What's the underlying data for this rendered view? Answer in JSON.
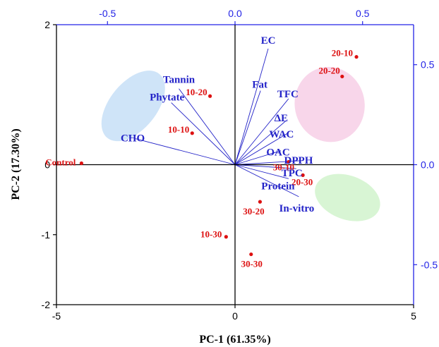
{
  "colors": {
    "axis": "#000000",
    "secondary_axis": "#2323e6",
    "loading": "#2323c8",
    "score": "#dd1111",
    "ellipse_blue": "#cfe4f8",
    "ellipse_pink": "#f8d6ea",
    "ellipse_green": "#d8f5d4"
  },
  "chart_data": {
    "type": "biplot",
    "xlabel": "PC-1 (61.35%)",
    "ylabel": "PC-2 (17.30%)",
    "xlim": [
      -5,
      5
    ],
    "ylim": [
      -2,
      2
    ],
    "x_ticks": [
      "-5",
      "0",
      "5"
    ],
    "y_ticks": [
      "2",
      "0",
      "-1",
      "-2"
    ],
    "secondary_x_ticks": [
      "-0.5",
      "0.0",
      "0.5"
    ],
    "secondary_y_ticks": [
      "0.5",
      "0.0",
      "-0.5"
    ],
    "secondary_xlim": [
      -0.7,
      0.7
    ],
    "secondary_ylim": [
      -0.7,
      0.7
    ],
    "loadings": [
      {
        "label": "EC",
        "x": 0.13,
        "y": 0.58
      },
      {
        "label": "Fat",
        "x": 0.1,
        "y": 0.37
      },
      {
        "label": "TFC",
        "x": 0.21,
        "y": 0.33
      },
      {
        "label": "ΔE",
        "x": 0.2,
        "y": 0.22
      },
      {
        "label": "WAC",
        "x": 0.21,
        "y": 0.16
      },
      {
        "label": "OAC",
        "x": 0.18,
        "y": 0.07
      },
      {
        "label": "DPPH",
        "x": 0.26,
        "y": 0.02
      },
      {
        "label": "TPC",
        "x": 0.24,
        "y": -0.02
      },
      {
        "label": "Protein",
        "x": 0.21,
        "y": -0.07
      },
      {
        "label": "In-vitro",
        "x": 0.25,
        "y": -0.16
      },
      {
        "label": "Tannin",
        "x": -0.22,
        "y": 0.38
      },
      {
        "label": "Phytate",
        "x": -0.25,
        "y": 0.31
      },
      {
        "label": "CHO",
        "x": -0.39,
        "y": 0.13
      }
    ],
    "scores": [
      {
        "label": "Control",
        "x": -4.3,
        "y": 0.02
      },
      {
        "label": "10-10",
        "x": -1.2,
        "y": 0.45
      },
      {
        "label": "10-20",
        "x": -0.7,
        "y": 0.98
      },
      {
        "label": "20-10",
        "x": 3.4,
        "y": 1.54
      },
      {
        "label": "20-20",
        "x": 3.0,
        "y": 1.26
      },
      {
        "label": "30-10",
        "x": 1.5,
        "y": 0.04
      },
      {
        "label": "20-30",
        "x": 1.9,
        "y": -0.15
      },
      {
        "label": "30-20",
        "x": 0.7,
        "y": -0.53
      },
      {
        "label": "10-30",
        "x": -0.25,
        "y": -1.03
      },
      {
        "label": "30-30",
        "x": 0.45,
        "y": -1.28
      }
    ],
    "groups": [
      {
        "color": "blue",
        "cx": -2.85,
        "cy": 0.84,
        "rx": 2.1,
        "ry": 0.58,
        "angle": -51
      },
      {
        "color": "pink",
        "cx": 2.65,
        "cy": 0.86,
        "rx": 1.92,
        "ry": 0.86,
        "angle": 78
      },
      {
        "color": "green",
        "cx": 3.15,
        "cy": -0.47,
        "rx": 1.72,
        "ry": 0.54,
        "angle": 20
      }
    ]
  }
}
